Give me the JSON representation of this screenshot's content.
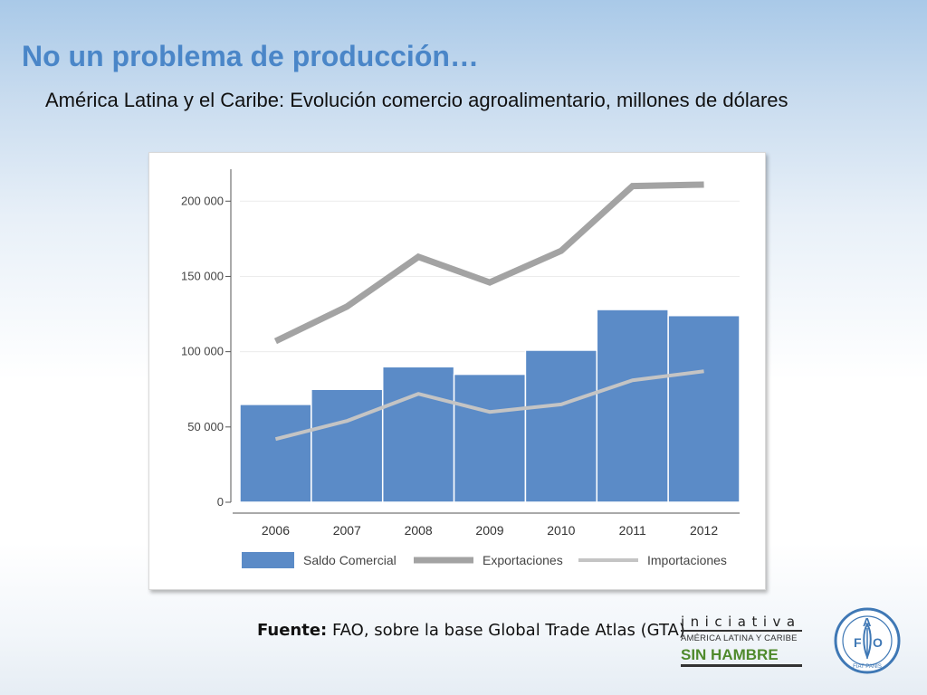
{
  "slide": {
    "title": "No un problema de producción…",
    "subtitle": "América Latina y el Caribe: Evolución comercio agroalimentario, millones de dólares",
    "source_label": "Fuente:",
    "source_text": " FAO, sobre la base Global Trade Atlas (GTA)"
  },
  "logos": {
    "iniciativa_word": "iniciativa",
    "iniciativa_region": "AMÉRICA LATINA Y CARIBE",
    "iniciativa_name": "SIN HAMBRE",
    "fao_letters": [
      "F",
      "A",
      "O"
    ],
    "fao_motto": "FIAT PANIS"
  },
  "chart_data": {
    "type": "bar",
    "categories": [
      "2006",
      "2007",
      "2008",
      "2009",
      "2010",
      "2011",
      "2012"
    ],
    "ylim": [
      0,
      220000
    ],
    "yticks": [
      0,
      50000,
      100000,
      150000,
      200000
    ],
    "ytick_labels": [
      "0",
      "50 000",
      "100 000",
      "150 000",
      "200 000"
    ],
    "grid": true,
    "legend_position": "bottom",
    "series": [
      {
        "name": "Saldo Comercial",
        "kind": "bar",
        "color": "#5b8bc7",
        "values": [
          65000,
          75000,
          90000,
          85000,
          101000,
          128000,
          124000
        ]
      },
      {
        "name": "Exportaciones",
        "kind": "line",
        "color": "#a3a3a3",
        "values": [
          107000,
          130000,
          163000,
          146000,
          167000,
          210000,
          211000
        ]
      },
      {
        "name": "Importaciones",
        "kind": "line",
        "color": "#c4c4c4",
        "values": [
          42000,
          54000,
          72000,
          60000,
          65000,
          81000,
          87000
        ]
      }
    ]
  }
}
